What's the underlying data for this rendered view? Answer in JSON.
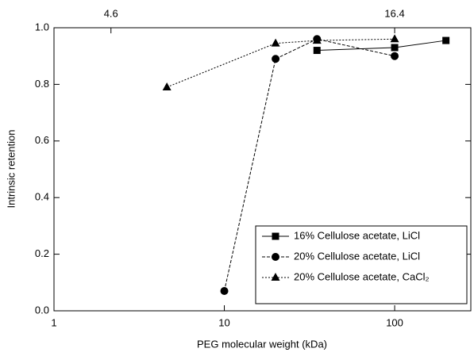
{
  "chart_data": {
    "type": "line",
    "xlabel": "PEG molecular weight (kDa)",
    "ylabel": "Intrinsic retention",
    "xscale": "log",
    "xlim": [
      1,
      280
    ],
    "xticks": [
      1,
      10,
      100
    ],
    "ylim": [
      0,
      1
    ],
    "yticks": [
      {
        "value": 0,
        "label": "0.0"
      },
      0.2,
      0.4,
      0.6,
      0.8,
      {
        "value": 1,
        "label": "1.0"
      }
    ],
    "x2ticks": [
      {
        "value": 2.16,
        "label": "4.6"
      },
      {
        "value": 100,
        "label": "16.4"
      }
    ],
    "legend": "lower right",
    "series": [
      {
        "name": "16% Cellulose acetate, LiCl",
        "color": "#000000",
        "linestyle": "solid",
        "marker": "square",
        "x": [
          35,
          100,
          200
        ],
        "values": [
          0.92,
          0.93,
          0.955
        ]
      },
      {
        "name": "20% Cellulose acetate, LiCl",
        "color": "#000000",
        "linestyle": "dashed",
        "marker": "circle",
        "x": [
          10,
          20,
          35,
          100
        ],
        "values": [
          0.07,
          0.89,
          0.96,
          0.9
        ]
      },
      {
        "name": "20% Cellulose acetate, CaCl₂",
        "color": "#000000",
        "linestyle": "dotted",
        "marker": "triangle",
        "x": [
          4.6,
          20,
          35,
          100
        ],
        "values": [
          0.79,
          0.945,
          0.955,
          0.96
        ]
      }
    ]
  }
}
